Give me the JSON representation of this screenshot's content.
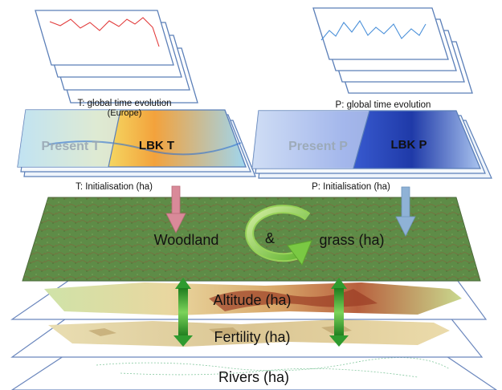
{
  "top_left": {
    "caption_line1": "T: global time evolution",
    "caption_line2": "(Europe)",
    "map_label_present": "Present T",
    "map_label_lbk": "LBK T",
    "init_caption": "T: Initialisation (ha)"
  },
  "top_right": {
    "caption": "P: global time evolution",
    "map_label_present": "Present P",
    "map_label_lbk": "LBK P",
    "init_caption": "P: Initialisation (ha)"
  },
  "layers": {
    "woodland_label": "Woodland",
    "ampersand": "&",
    "grass_label": "grass (ha)",
    "altitude_label": "Altitude (ha)",
    "fertility_label": "Fertility (ha)",
    "rivers_label": "Rivers (ha)"
  },
  "colors": {
    "temperature_series": "#e23b3b",
    "precipitation_series": "#4a90d9",
    "woodland_green": "#5f8f4a",
    "cycle_arrow_green": "#7ac943",
    "double_arrow_green": "#2f9b2f",
    "temp_arrow": "#d98a99",
    "precip_arrow": "#8fb2d6",
    "frame_blue": "#5b7fb8"
  }
}
